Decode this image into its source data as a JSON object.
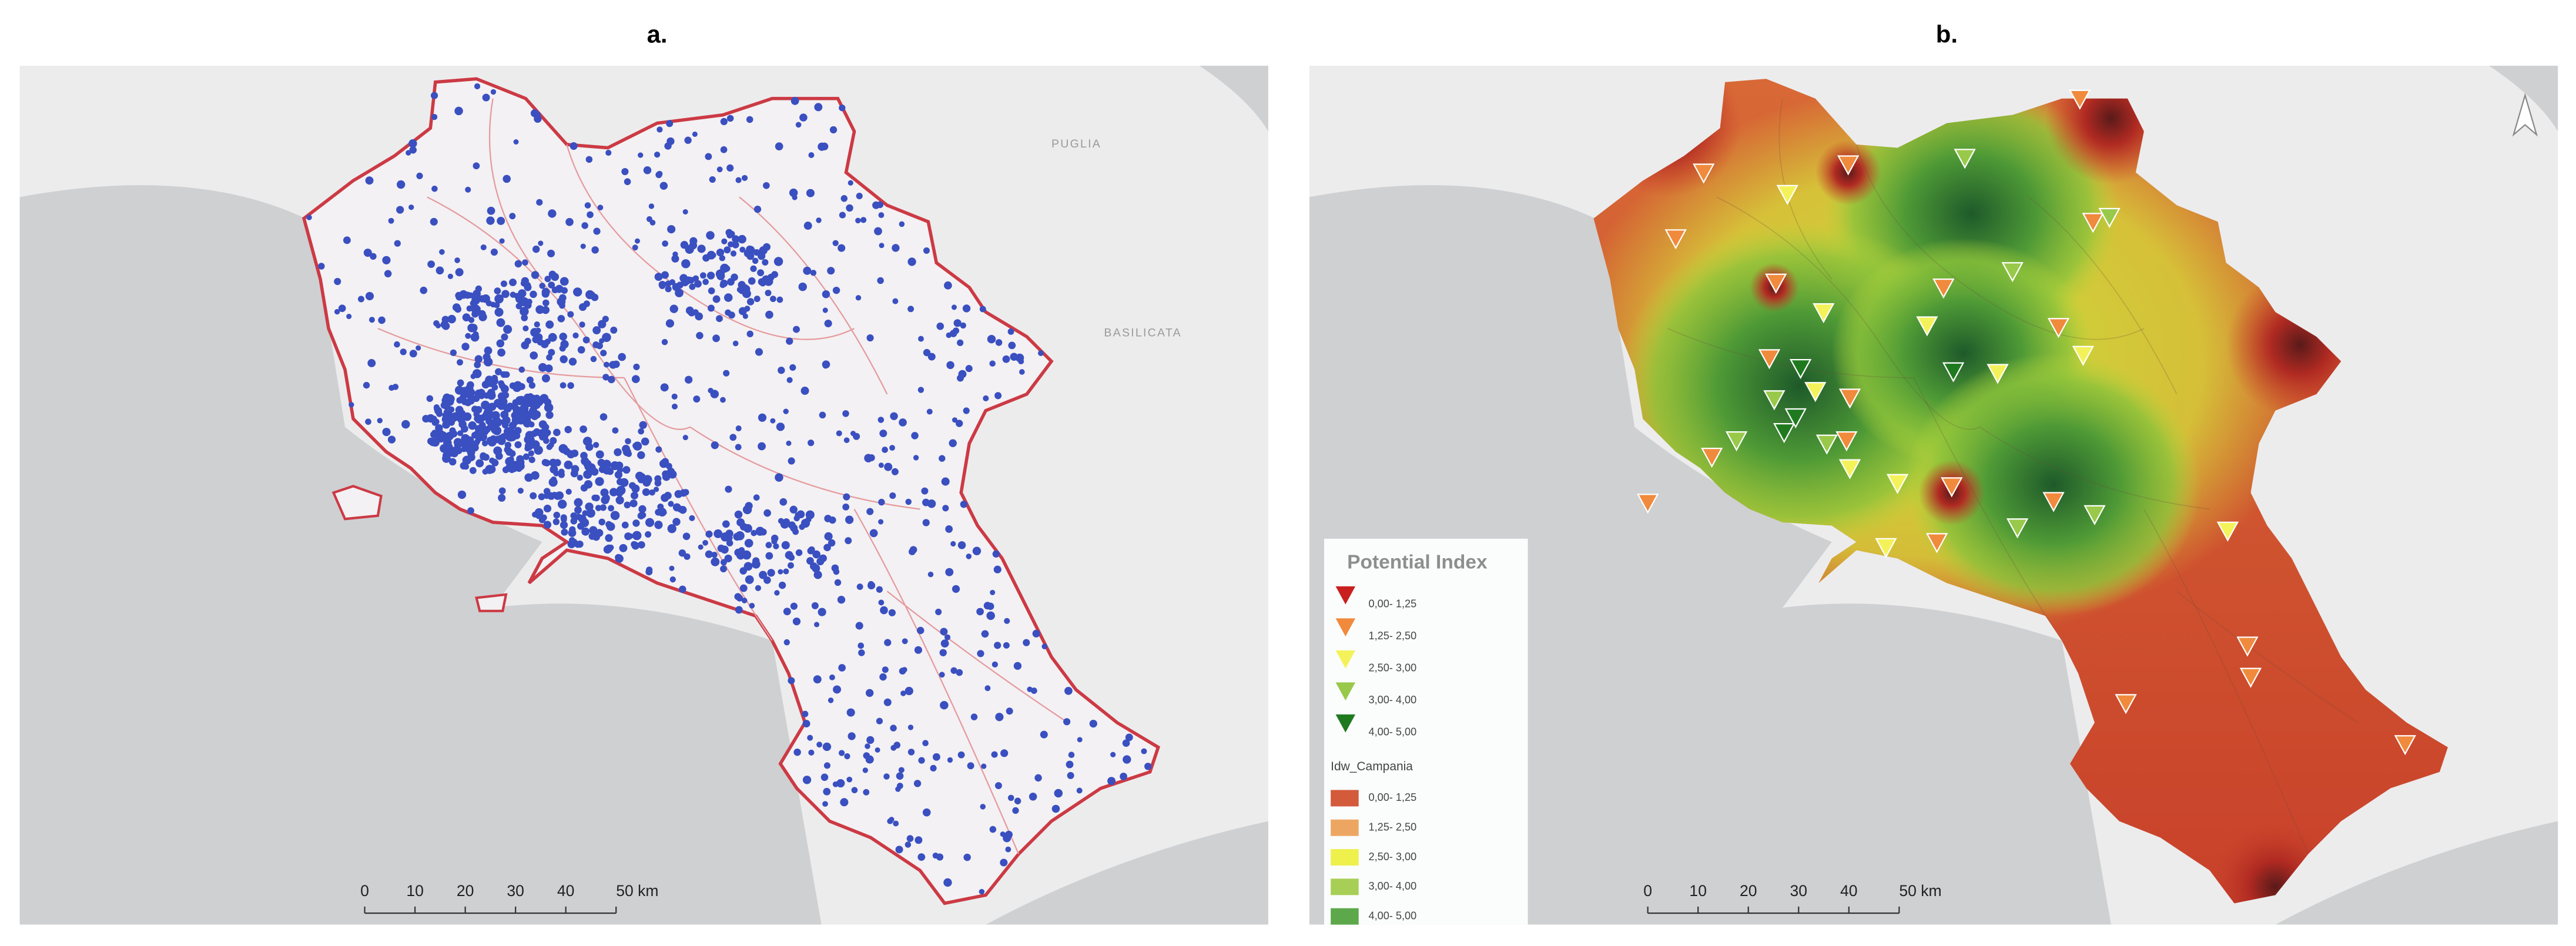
{
  "panels": [
    {
      "title": "a.",
      "labels": [
        "PUGLIA",
        "BASILICATA"
      ],
      "scale": [
        "0",
        "10",
        "20",
        "30",
        "40",
        "50 km"
      ],
      "point_color": "#3a4fc0"
    },
    {
      "title": "b.",
      "scale": [
        "0",
        "10",
        "20",
        "30",
        "40",
        "50 km"
      ],
      "legend": {
        "title": "Potential Index",
        "classes": [
          {
            "label": "0,00- 1,25",
            "color": "#c8201e"
          },
          {
            "label": "1,25- 2,50",
            "color": "#f08a3c"
          },
          {
            "label": "2,50- 3,00",
            "color": "#f4f25a"
          },
          {
            "label": "3,00- 4,00",
            "color": "#98c94a"
          },
          {
            "label": "4,00- 5,00",
            "color": "#1f7a1f"
          }
        ]
      },
      "raster_legend": {
        "title": "Idw_Campania",
        "classes": [
          {
            "label": "0,00- 1,25",
            "color": "#d45a3c"
          },
          {
            "label": "1,25- 2,50",
            "color": "#eda661"
          },
          {
            "label": "2,50- 3,00",
            "color": "#eef04c"
          },
          {
            "label": "3,00- 4,00",
            "color": "#a7cf55"
          },
          {
            "label": "4,00- 5,00",
            "color": "#5da84a"
          }
        ]
      }
    }
  ]
}
